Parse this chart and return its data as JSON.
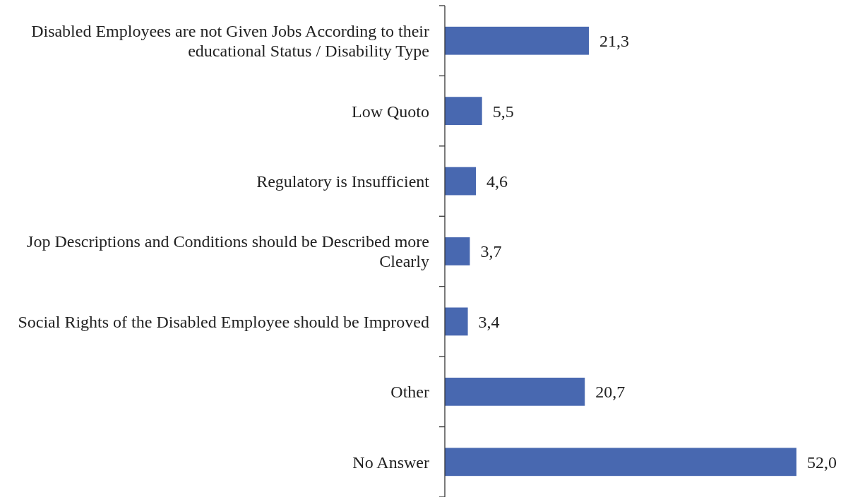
{
  "chart_data": {
    "type": "bar",
    "orientation": "horizontal",
    "categories": [
      "Disabled Employees are not Given Jobs According to their educational Status / Disability Type",
      "Low Quoto",
      "Regulatory is Insufficient",
      "Jop Descriptions and Conditions should be Described more Clearly",
      "Social Rights of the Disabled Employee should be Improved",
      "Other",
      "No Answer"
    ],
    "values": [
      21.3,
      5.5,
      4.6,
      3.7,
      3.4,
      20.7,
      52.0
    ],
    "value_labels": [
      "21,3",
      "5,5",
      "4,6",
      "3,7",
      "3,4",
      "20,7",
      "52,0"
    ],
    "color": "#4868b0",
    "xlim": [
      0,
      52
    ]
  }
}
